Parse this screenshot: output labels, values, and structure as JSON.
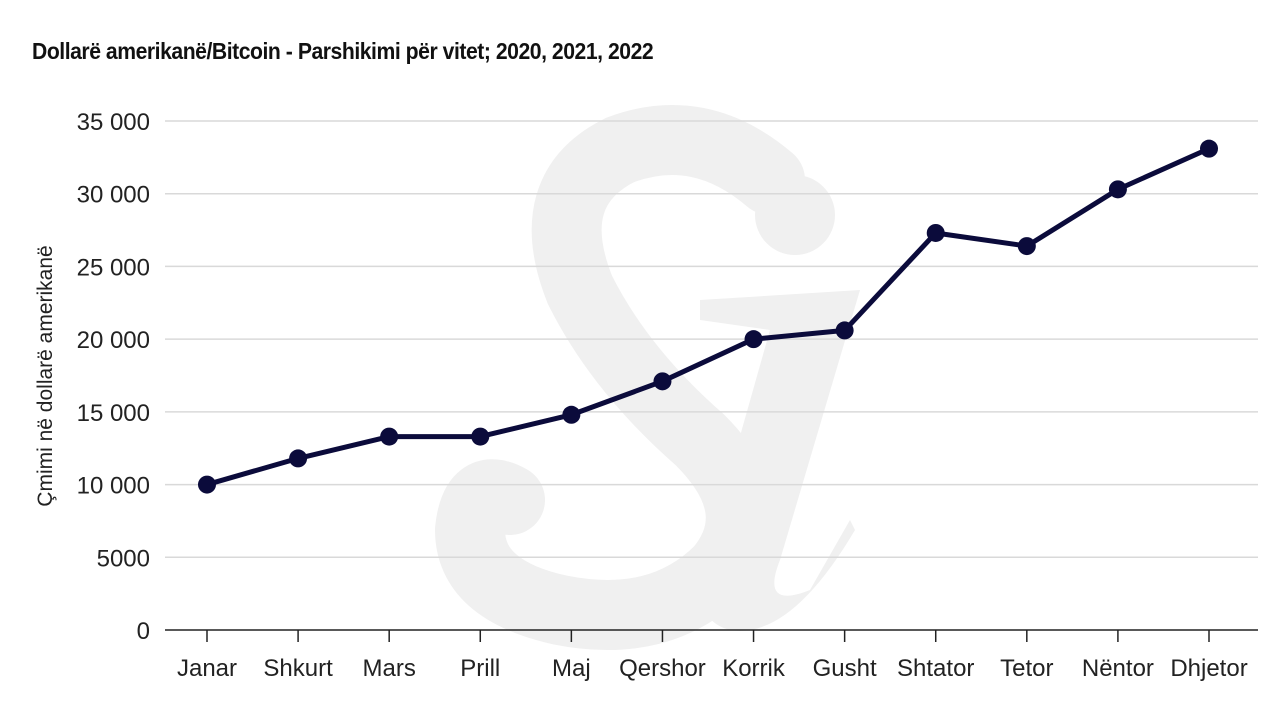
{
  "chart_data": {
    "type": "line",
    "title": "Dollarë amerikanë/Bitcoin - Parshikimi për vitet; 2020, 2021, 2022",
    "xlabel": "",
    "ylabel": "Çmimi në dollarë amerikanë",
    "categories": [
      "Janar",
      "Shkurt",
      "Mars",
      "Prill",
      "Maj",
      "Qershor",
      "Korrik",
      "Gusht",
      "Shtator",
      "Tetor",
      "Nëntor",
      "Dhjetor"
    ],
    "values": [
      10000,
      11800,
      13300,
      13300,
      14800,
      17100,
      20000,
      20600,
      27300,
      26400,
      30300,
      33100
    ],
    "ylim": [
      0,
      35000
    ],
    "yticks": [
      0,
      5000,
      10000,
      15000,
      20000,
      25000,
      30000,
      35000
    ],
    "ytick_labels": [
      "0",
      "5000",
      "10 000",
      "15 000",
      "20 000",
      "25 000",
      "30 000",
      "35 000"
    ],
    "grid": true,
    "line_color": "#0b0b3b",
    "watermark": "Si"
  }
}
